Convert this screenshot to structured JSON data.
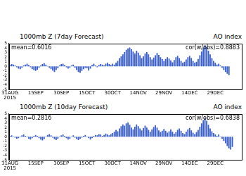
{
  "chart_data": [
    {
      "type": "bar",
      "title": "1000mb Z (7day Forecast)",
      "subtitle": "AO index",
      "annotations": [
        "mean=0.6016",
        "cor(w/obs)=0.8883"
      ],
      "categories": [
        "31AUG 2015",
        null,
        null,
        null,
        null,
        null,
        null,
        null,
        null,
        null,
        null,
        null,
        null,
        null,
        null,
        "15SEP",
        null,
        null,
        null,
        null,
        null,
        null,
        null,
        null,
        null,
        null,
        null,
        null,
        null,
        null,
        "30SEP",
        null,
        null,
        null,
        null,
        null,
        null,
        null,
        null,
        null,
        null,
        null,
        null,
        null,
        null,
        "15OCT",
        null,
        null,
        null,
        null,
        null,
        null,
        null,
        null,
        null,
        null,
        null,
        null,
        null,
        null,
        "30OCT",
        null,
        null,
        null,
        null,
        null,
        null,
        null,
        null,
        null,
        null,
        null,
        null,
        null,
        null,
        "14NOV",
        null,
        null,
        null,
        null,
        null,
        null,
        null,
        null,
        null,
        null,
        null,
        null,
        null,
        null,
        "29NOV",
        null,
        null,
        null,
        null,
        null,
        null,
        null,
        null,
        null,
        null,
        null,
        null,
        null,
        null,
        "14DEC",
        null,
        null,
        null,
        null,
        null,
        null,
        null,
        null,
        null,
        null,
        null,
        null,
        null,
        null,
        "29DEC",
        null,
        null,
        null,
        null,
        null,
        null,
        null,
        null,
        null,
        null,
        null,
        null,
        null,
        null,
        null
      ],
      "values": [
        0.3,
        0.5,
        0.4,
        0.2,
        -0.2,
        -0.5,
        -0.6,
        -0.3,
        0.2,
        0.4,
        0.6,
        0.3,
        -0.2,
        -0.6,
        -0.8,
        -1.0,
        -0.7,
        -0.3,
        0.2,
        0.5,
        0.7,
        0.4,
        0.1,
        -0.3,
        -0.6,
        -0.9,
        -1.2,
        -0.8,
        -0.4,
        0.2,
        0.5,
        0.6,
        0.3,
        -0.2,
        -0.5,
        -0.3,
        0.2,
        0.4,
        -0.3,
        -0.8,
        -1.2,
        -1.4,
        -1.0,
        -0.6,
        -0.3,
        -0.4,
        -0.9,
        -0.5,
        0.3,
        0.6,
        0.2,
        -0.2,
        0.3,
        0.5,
        0.4,
        0.2,
        0.6,
        0.8,
        0.5,
        0.3,
        0.6,
        0.4,
        0.8,
        1.2,
        1.8,
        2.2,
        2.6,
        3.1,
        3.6,
        3.9,
        4.1,
        3.7,
        3.2,
        2.8,
        3.4,
        3.0,
        2.4,
        1.8,
        2.2,
        2.8,
        3.1,
        2.6,
        2.0,
        1.5,
        1.9,
        2.4,
        2.9,
        2.5,
        2.0,
        1.6,
        1.2,
        1.6,
        2.0,
        1.7,
        1.3,
        0.9,
        1.4,
        2.0,
        2.3,
        1.8,
        1.2,
        0.8,
        1.0,
        1.5,
        2.0,
        2.3,
        1.8,
        1.2,
        0.8,
        1.0,
        1.6,
        2.4,
        3.2,
        4.0,
        4.6,
        4.2,
        3.4,
        2.6,
        1.8,
        1.2,
        0.8,
        0.4,
        0.6,
        0.2,
        -0.3,
        -0.8,
        -1.2,
        -1.6,
        -1.9,
        null,
        null,
        null,
        null,
        null,
        null,
        null
      ],
      "color": "#3a5fcd",
      "ylim": [
        -5,
        5
      ],
      "yticks": [
        -5,
        -4,
        -3,
        -2,
        -1,
        0,
        1,
        2,
        3,
        4,
        5
      ],
      "grid": false
    },
    {
      "type": "bar",
      "title": "1000mb Z (10day Forecast)",
      "subtitle": "AO index",
      "annotations": [
        "mean=0.2816",
        "cor(w/obs)=0.6838"
      ],
      "categories": [
        "31AUG 2015",
        null,
        null,
        null,
        null,
        null,
        null,
        null,
        null,
        null,
        null,
        null,
        null,
        null,
        null,
        "15SEP",
        null,
        null,
        null,
        null,
        null,
        null,
        null,
        null,
        null,
        null,
        null,
        null,
        null,
        null,
        "30SEP",
        null,
        null,
        null,
        null,
        null,
        null,
        null,
        null,
        null,
        null,
        null,
        null,
        null,
        null,
        "15OCT",
        null,
        null,
        null,
        null,
        null,
        null,
        null,
        null,
        null,
        null,
        null,
        null,
        null,
        null,
        "30OCT",
        null,
        null,
        null,
        null,
        null,
        null,
        null,
        null,
        null,
        null,
        null,
        null,
        null,
        null,
        "14NOV",
        null,
        null,
        null,
        null,
        null,
        null,
        null,
        null,
        null,
        null,
        null,
        null,
        null,
        null,
        "29NOV",
        null,
        null,
        null,
        null,
        null,
        null,
        null,
        null,
        null,
        null,
        null,
        null,
        null,
        null,
        "14DEC",
        null,
        null,
        null,
        null,
        null,
        null,
        null,
        null,
        null,
        null,
        null,
        null,
        null,
        null,
        "29DEC",
        null,
        null,
        null,
        null,
        null,
        null,
        null,
        null,
        null,
        null,
        null,
        null,
        null,
        null,
        null
      ],
      "values": [
        0.2,
        0.3,
        0.1,
        -0.2,
        -0.4,
        -0.3,
        0.1,
        0.3,
        0.5,
        0.2,
        -0.1,
        -0.4,
        -0.6,
        -0.3,
        0.2,
        0.4,
        0.2,
        -0.3,
        -0.6,
        -0.8,
        -0.5,
        0.1,
        0.4,
        0.6,
        0.3,
        -0.2,
        -0.5,
        -0.7,
        -0.4,
        0.1,
        0.3,
        0.5,
        0.2,
        -0.3,
        -0.6,
        -0.4,
        0.1,
        0.3,
        -0.2,
        -0.5,
        -0.7,
        -0.4,
        -0.2,
        0.2,
        0.4,
        0.1,
        -0.3,
        -0.6,
        -0.3,
        0.2,
        0.4,
        0.3,
        0.6,
        0.5,
        0.2,
        0.4,
        0.7,
        0.5,
        0.3,
        0.6,
        0.8,
        1.1,
        1.5,
        1.2,
        1.8,
        2.3,
        2.7,
        2.4,
        2.9,
        3.1,
        2.6,
        2.0,
        1.6,
        2.2,
        2.7,
        2.3,
        1.8,
        1.4,
        1.9,
        2.4,
        2.0,
        1.5,
        1.1,
        1.6,
        2.1,
        2.5,
        2.0,
        1.4,
        1.0,
        1.3,
        1.7,
        1.3,
        0.9,
        1.2,
        1.6,
        1.1,
        0.7,
        1.0,
        1.5,
        1.8,
        1.3,
        0.8,
        0.6,
        1.1,
        1.6,
        1.9,
        1.4,
        0.9,
        0.6,
        1.0,
        1.5,
        2.2,
        2.9,
        3.6,
        4.1,
        3.5,
        2.6,
        1.8,
        1.2,
        0.8,
        0.5,
        0.2,
        0.5,
        0.1,
        -0.4,
        -0.9,
        -1.4,
        -2.0,
        -2.5,
        -2.8,
        -2.2,
        null,
        null,
        null,
        null,
        null
      ],
      "color": "#3a5fcd",
      "ylim": [
        -5,
        5
      ],
      "yticks": [
        -5,
        -4,
        -3,
        -2,
        -1,
        0,
        1,
        2,
        3,
        4,
        5
      ],
      "grid": false
    }
  ]
}
